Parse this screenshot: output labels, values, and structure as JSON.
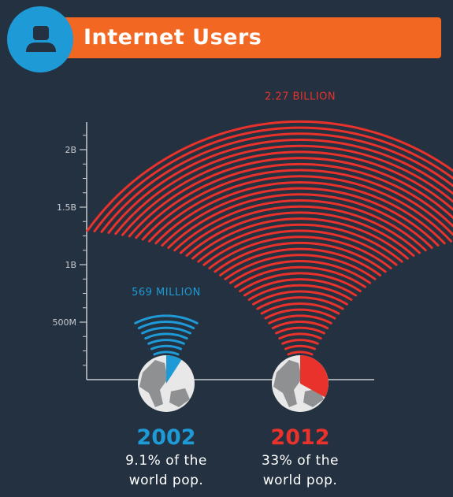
{
  "header": {
    "title": "Internet Users",
    "icon": "user-icon"
  },
  "colors": {
    "background": "#233140",
    "header_bar": "#f26722",
    "avatar_circle": "#1e9ad6",
    "series_2002": "#1e9ad6",
    "series_2012": "#e8322b",
    "axis": "#c8ccd1"
  },
  "chart_data": {
    "type": "bar",
    "categories": [
      "2002",
      "2012"
    ],
    "values": [
      569000000,
      2270000000
    ],
    "value_labels": [
      "569 MILLION",
      "2.27 BILLION"
    ],
    "shares_of_world_population": [
      "9.1%",
      "33%"
    ],
    "descriptions": [
      [
        "9.1% of the",
        "world pop."
      ],
      [
        "33% of the",
        "world pop."
      ]
    ],
    "yticks": [
      500000000,
      1000000000,
      1500000000,
      2000000000
    ],
    "ytick_labels": [
      "500M",
      "1B",
      "1.5B",
      "2B"
    ],
    "ylim": [
      0,
      2270000000
    ],
    "title": "Internet Users",
    "xlabel": "",
    "ylabel": "",
    "grid": false,
    "legend": "none"
  }
}
